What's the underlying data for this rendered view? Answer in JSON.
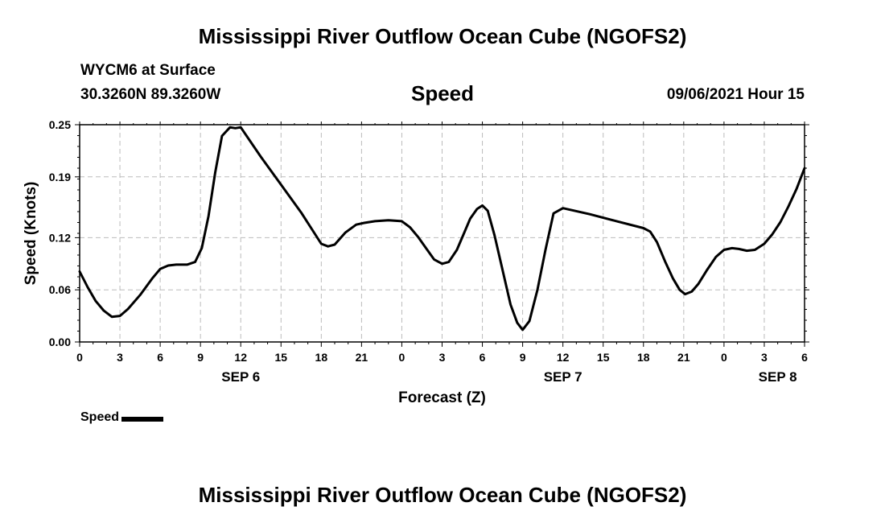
{
  "header": {
    "title": "Mississippi River Outflow Ocean Cube (NGOFS2)",
    "station": "WYCM6 at Surface",
    "coordinates": "30.3260N  89.3260W",
    "variable": "Speed",
    "datetime": "09/06/2021 Hour 15"
  },
  "footer": {
    "title": "Mississippi River Outflow Ocean Cube (NGOFS2)"
  },
  "legend": {
    "label": "Speed"
  },
  "colors": {
    "line": "#000000",
    "grid": "#bbbbbb"
  },
  "chart_data": {
    "type": "line",
    "xlabel": "Forecast (Z)",
    "ylabel": "Speed (Knots)",
    "x_unit": "hours from 2021-09-06 00Z",
    "xlim": [
      0,
      54
    ],
    "ylim": [
      0,
      0.25
    ],
    "grid": true,
    "legend_position": "bottom-left",
    "x_ticks": [
      {
        "x": 0,
        "label": "0"
      },
      {
        "x": 3,
        "label": "3"
      },
      {
        "x": 6,
        "label": "6"
      },
      {
        "x": 9,
        "label": "9"
      },
      {
        "x": 12,
        "label": "12"
      },
      {
        "x": 15,
        "label": "15"
      },
      {
        "x": 18,
        "label": "18"
      },
      {
        "x": 21,
        "label": "21"
      },
      {
        "x": 24,
        "label": "0"
      },
      {
        "x": 27,
        "label": "3"
      },
      {
        "x": 30,
        "label": "6"
      },
      {
        "x": 33,
        "label": "9"
      },
      {
        "x": 36,
        "label": "12"
      },
      {
        "x": 39,
        "label": "15"
      },
      {
        "x": 42,
        "label": "18"
      },
      {
        "x": 45,
        "label": "21"
      },
      {
        "x": 48,
        "label": "0"
      },
      {
        "x": 51,
        "label": "3"
      },
      {
        "x": 54,
        "label": "6"
      }
    ],
    "date_labels": [
      {
        "x": 12,
        "label": "SEP 6"
      },
      {
        "x": 36,
        "label": "SEP 7"
      },
      {
        "x": 52,
        "label": "SEP 8"
      }
    ],
    "y_ticks": [
      {
        "y": 0,
        "label": "0.00"
      },
      {
        "y": 0.06,
        "label": "0.06"
      },
      {
        "y": 0.12,
        "label": "0.12"
      },
      {
        "y": 0.19,
        "label": "0.19"
      },
      {
        "y": 0.25,
        "label": "0.25"
      }
    ],
    "series": [
      {
        "name": "Speed",
        "x": [
          0,
          0.6,
          1.2,
          1.8,
          2.4,
          3,
          3.6,
          4.5,
          5.4,
          6,
          6.6,
          7.2,
          8,
          8.6,
          9.1,
          9.6,
          10.1,
          10.6,
          11.2,
          11.6,
          12,
          13.5,
          15,
          16.5,
          18,
          18.5,
          19,
          19.8,
          20.6,
          21.2,
          22,
          23,
          24,
          24.6,
          25.2,
          25.8,
          26.4,
          27,
          27.5,
          28.1,
          28.6,
          29.1,
          29.6,
          30,
          30.4,
          30.9,
          31.5,
          32.1,
          32.6,
          33,
          33.5,
          34.1,
          34.7,
          35.3,
          36,
          38,
          40,
          42,
          42.5,
          43,
          43.6,
          44.2,
          44.7,
          45.1,
          45.6,
          46.1,
          46.7,
          47.4,
          48,
          48.6,
          49.1,
          49.7,
          50.3,
          51,
          51.6,
          52.2,
          52.8,
          53.4,
          54
        ],
        "values": [
          0.081,
          0.063,
          0.047,
          0.036,
          0.029,
          0.03,
          0.038,
          0.054,
          0.073,
          0.084,
          0.088,
          0.089,
          0.089,
          0.092,
          0.108,
          0.145,
          0.195,
          0.237,
          0.247,
          0.246,
          0.247,
          0.213,
          0.181,
          0.149,
          0.113,
          0.11,
          0.112,
          0.126,
          0.135,
          0.137,
          0.139,
          0.14,
          0.139,
          0.132,
          0.121,
          0.108,
          0.095,
          0.09,
          0.092,
          0.106,
          0.124,
          0.142,
          0.153,
          0.157,
          0.151,
          0.123,
          0.083,
          0.043,
          0.022,
          0.014,
          0.024,
          0.06,
          0.106,
          0.148,
          0.154,
          0.147,
          0.139,
          0.131,
          0.127,
          0.115,
          0.093,
          0.073,
          0.06,
          0.055,
          0.058,
          0.067,
          0.082,
          0.098,
          0.106,
          0.108,
          0.107,
          0.105,
          0.106,
          0.113,
          0.124,
          0.138,
          0.156,
          0.176,
          0.2
        ]
      }
    ]
  }
}
